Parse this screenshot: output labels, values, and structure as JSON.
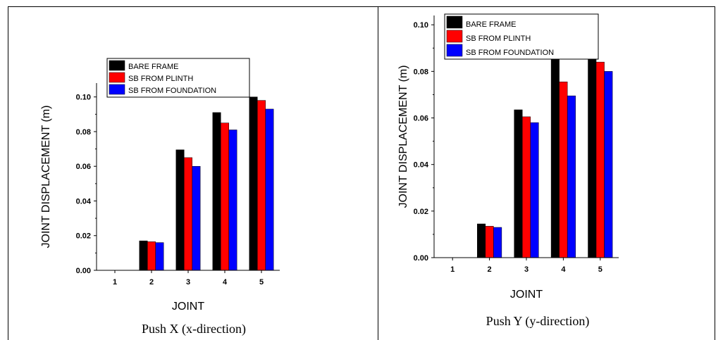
{
  "chart_data": [
    {
      "type": "bar",
      "caption": "Push X (x-direction)",
      "xlabel": "JOINT",
      "ylabel": "JOINT DISPLACEMENT (m)",
      "categories": [
        "1",
        "2",
        "3",
        "4",
        "5"
      ],
      "ylim": [
        0,
        0.108
      ],
      "yticks": [
        "0.00",
        "0.02",
        "0.04",
        "0.06",
        "0.08",
        "0.10"
      ],
      "legend_position": "top-center",
      "series": [
        {
          "name": "BARE FRAME",
          "color": "#000000",
          "values": [
            0,
            0.017,
            0.0695,
            0.091,
            0.1
          ]
        },
        {
          "name": "SB FROM PLINTH",
          "color": "#ff0000",
          "values": [
            0,
            0.0165,
            0.065,
            0.085,
            0.098
          ]
        },
        {
          "name": "SB FROM FOUNDATION",
          "color": "#0000ff",
          "values": [
            0,
            0.016,
            0.06,
            0.081,
            0.093
          ]
        }
      ]
    },
    {
      "type": "bar",
      "caption": "Push Y (y-direction)",
      "xlabel": "JOINT",
      "ylabel": "JOINT DISPLACEMENT (m)",
      "categories": [
        "1",
        "2",
        "3",
        "4",
        "5"
      ],
      "ylim": [
        0,
        0.104
      ],
      "yticks": [
        "0.00",
        "0.02",
        "0.04",
        "0.06",
        "0.08",
        "0.10"
      ],
      "legend_position": "top-left",
      "series": [
        {
          "name": "BARE FRAME",
          "color": "#000000",
          "values": [
            0,
            0.0145,
            0.0635,
            0.0855,
            0.094
          ]
        },
        {
          "name": "SB FROM PLINTH",
          "color": "#ff0000",
          "values": [
            0,
            0.0135,
            0.0605,
            0.0755,
            0.084
          ]
        },
        {
          "name": "SB FROM FOUNDATION",
          "color": "#0000ff",
          "values": [
            0,
            0.013,
            0.058,
            0.0695,
            0.08
          ]
        }
      ]
    }
  ]
}
